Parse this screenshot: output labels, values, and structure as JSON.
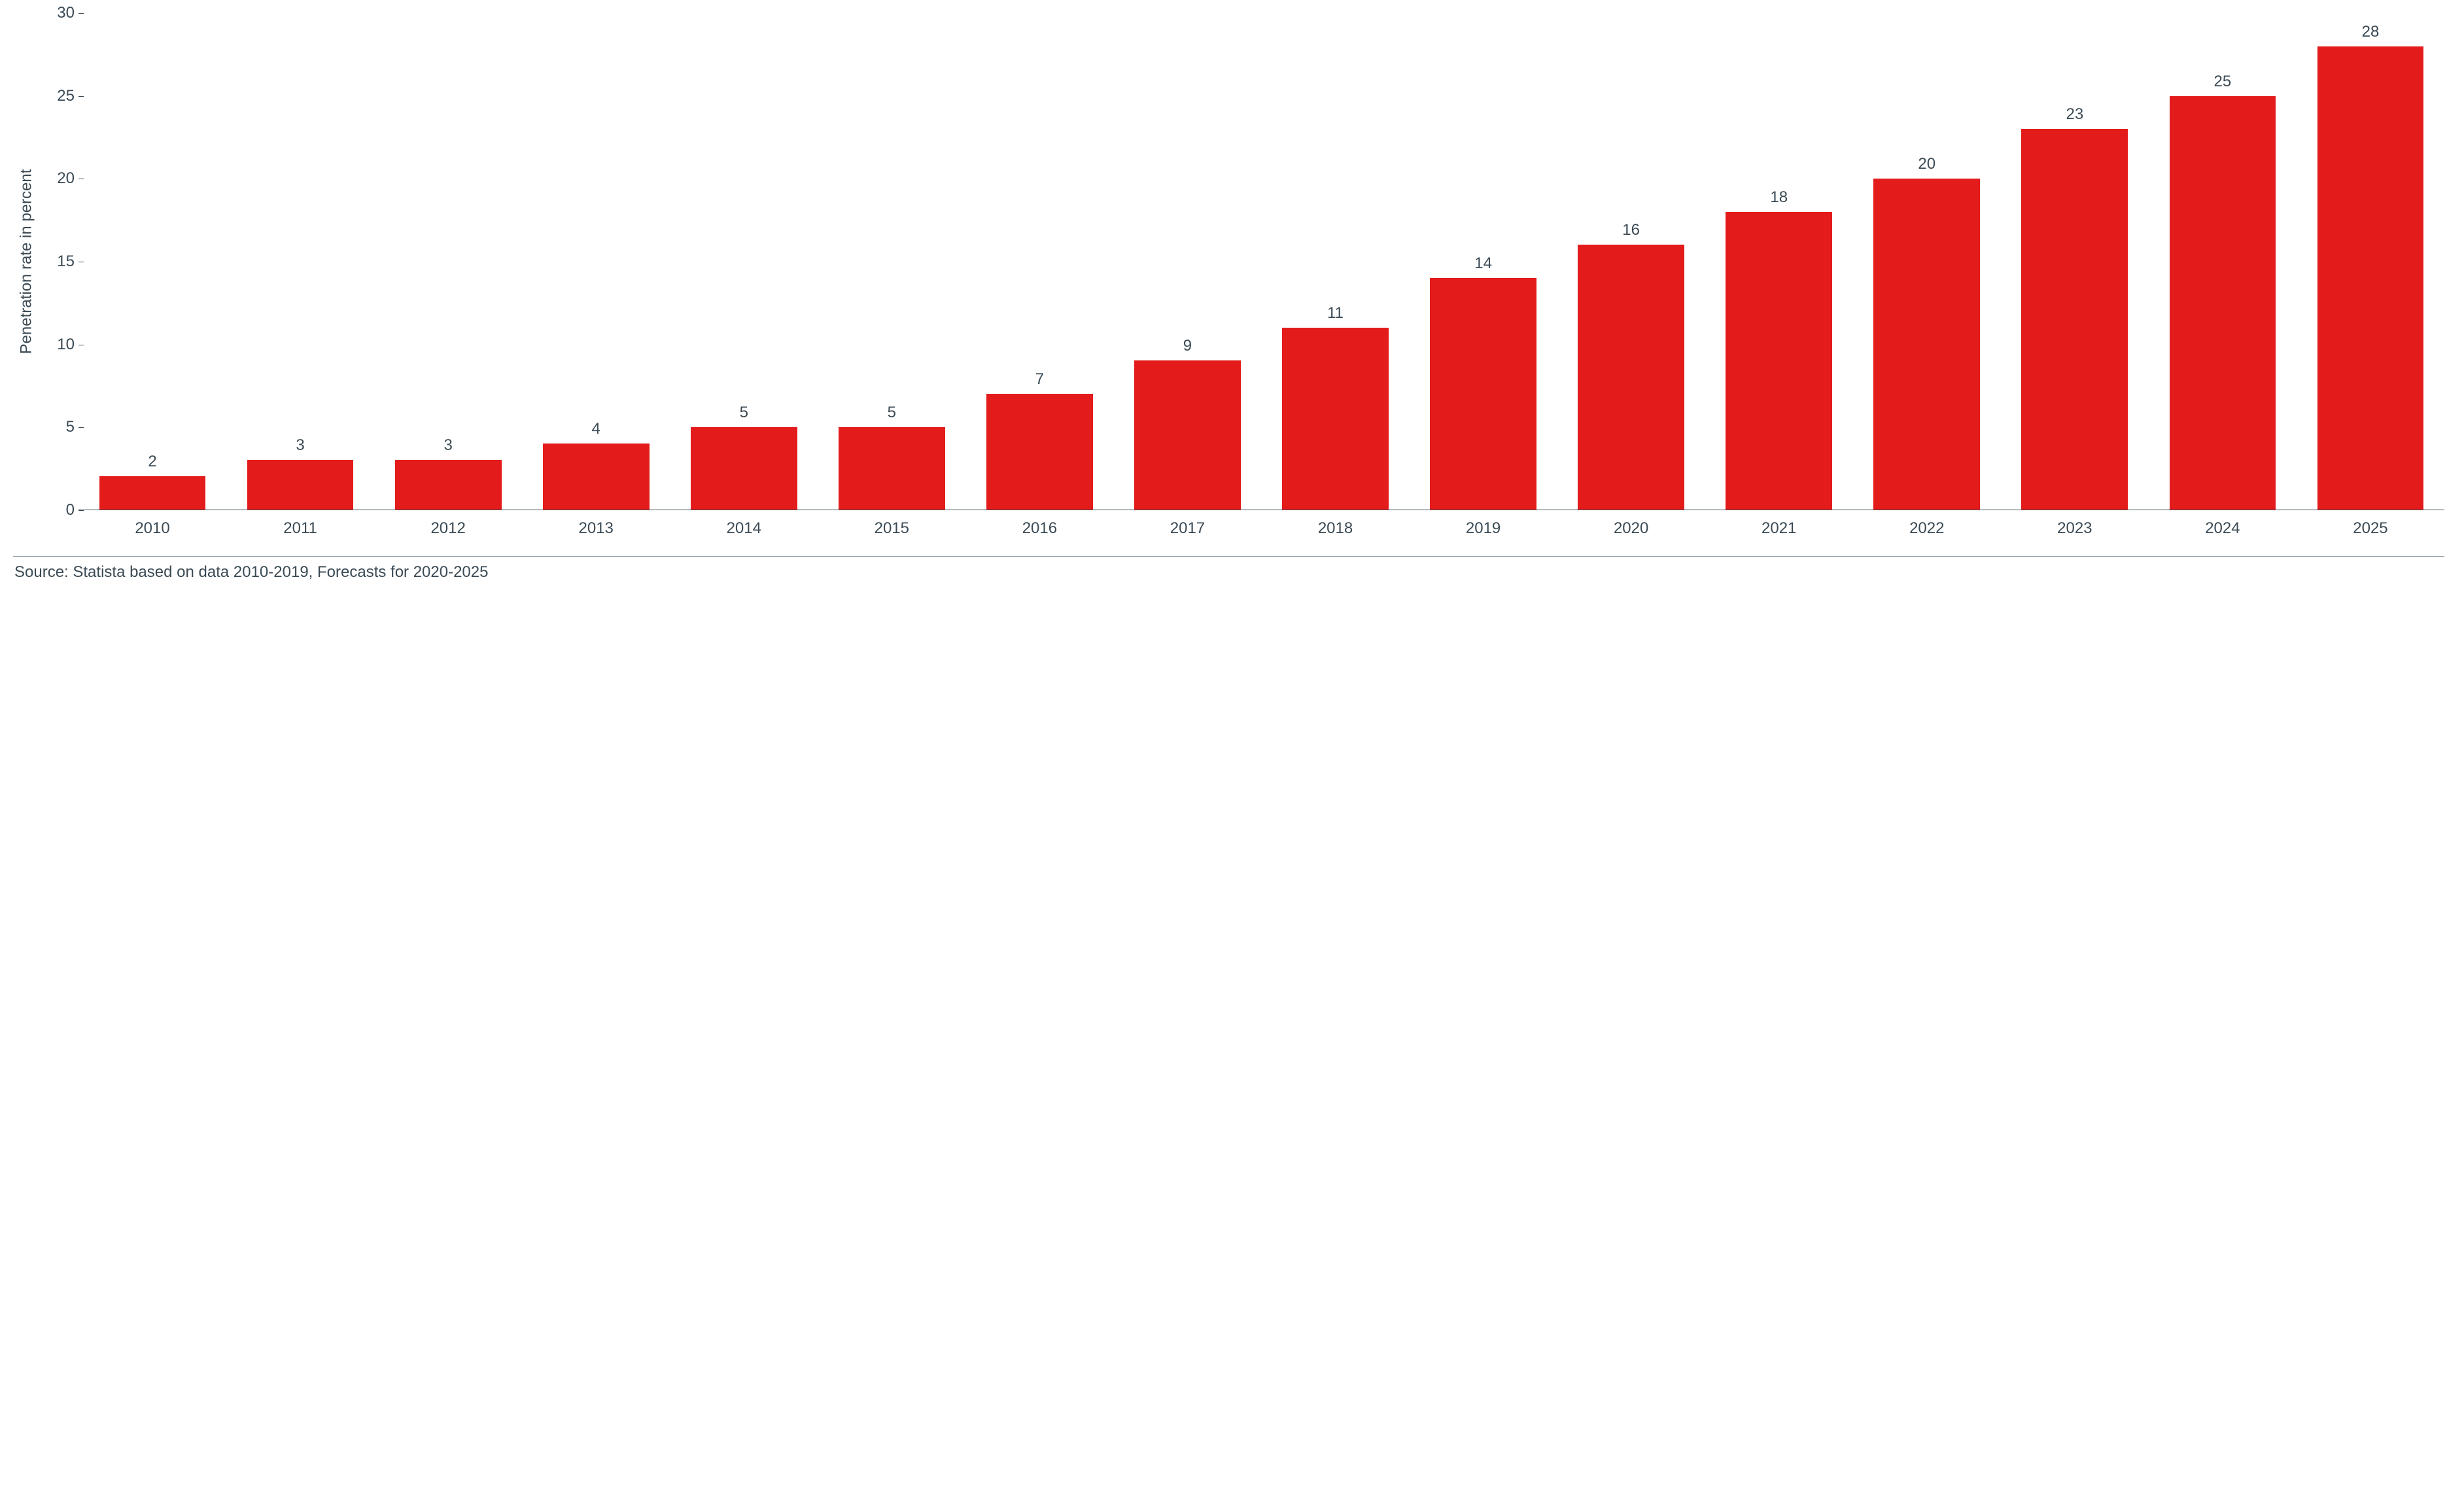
{
  "chart": {
    "type": "bar",
    "ylabel": "Penetration rate in percent",
    "categories": [
      "2010",
      "2011",
      "2012",
      "2013",
      "2014",
      "2015",
      "2016",
      "2017",
      "2018",
      "2019",
      "2020",
      "2021",
      "2022",
      "2023",
      "2024",
      "2025"
    ],
    "values": [
      2,
      3,
      3,
      4,
      5,
      5,
      7,
      9,
      11,
      14,
      16,
      18,
      20,
      23,
      25,
      28
    ],
    "bar_color": "#e31b1b",
    "ylim": [
      0,
      30
    ],
    "ytick_step": 5,
    "axis_color": "#3b4a54",
    "value_label_color": "#3b4a54",
    "tick_label_color": "#3b4a54",
    "background_color": "#ffffff",
    "tick_fontsize": 24,
    "value_fontsize": 24,
    "ylabel_fontsize": 24,
    "bar_width": 0.72
  },
  "footer": {
    "source": "Source: Statista based on data 2010-2019, Forecasts for 2020-2025",
    "rule_color": "#8a99a3"
  }
}
